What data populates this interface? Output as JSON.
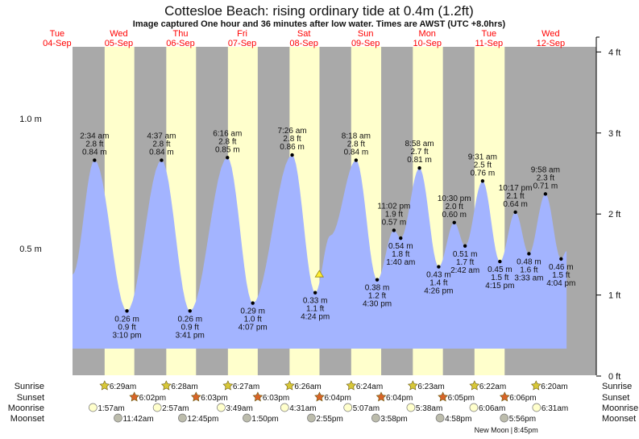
{
  "chart_data": {
    "type": "area",
    "title": "Cottesloe Beach: rising  ordinary tide at 0.4m (1.2ft)",
    "subtitle": "Image captured One hour and 36 minutes after low water. Times are AWST (UTC +8.0hrs)",
    "days": [
      {
        "dow": "Tue",
        "date": "04-Sep"
      },
      {
        "dow": "Wed",
        "date": "05-Sep"
      },
      {
        "dow": "Thu",
        "date": "06-Sep"
      },
      {
        "dow": "Fri",
        "date": "07-Sep"
      },
      {
        "dow": "Sat",
        "date": "08-Sep"
      },
      {
        "dow": "Sun",
        "date": "09-Sep"
      },
      {
        "dow": "Mon",
        "date": "10-Sep"
      },
      {
        "dow": "Tue",
        "date": "11-Sep"
      },
      {
        "dow": "Wed",
        "date": "12-Sep"
      }
    ],
    "left_axis": {
      "unit": "m",
      "ticks": [
        {
          "v": 0.5,
          "label": "0.5 m"
        },
        {
          "v": 1.0,
          "label": "1.0 m"
        }
      ]
    },
    "right_axis": {
      "unit": "ft",
      "ticks": [
        {
          "v": 0,
          "label": "0 ft"
        },
        {
          "v": 1,
          "label": "1 ft"
        },
        {
          "v": 2,
          "label": "2 ft"
        },
        {
          "v": 3,
          "label": "3 ft"
        },
        {
          "v": 4,
          "label": "4 ft"
        }
      ]
    },
    "current": {
      "day": 4,
      "time": "6:00 pm",
      "height_m": 0.4
    },
    "series_start": {
      "day": 0,
      "hour": 18.0,
      "height_m": 0.4
    },
    "series_end": {
      "day": 8,
      "hour": 18.2,
      "height_m": 0.49
    },
    "extra_points": [
      {
        "day": 4,
        "hour": 22.3,
        "height_m": 0.55
      }
    ],
    "extremes": [
      {
        "type": "high",
        "day": 1,
        "time": "2:34 am",
        "m": "0.84 m",
        "ft": "2.8 ft",
        "height_m": 0.84
      },
      {
        "type": "low",
        "day": 1,
        "time": "3:10 pm",
        "m": "0.26 m",
        "ft": "0.9 ft",
        "height_m": 0.26
      },
      {
        "type": "high",
        "day": 2,
        "time": "4:37 am",
        "m": "0.84 m",
        "ft": "2.8 ft",
        "height_m": 0.84
      },
      {
        "type": "low",
        "day": 2,
        "time": "3:41 pm",
        "m": "0.26 m",
        "ft": "0.9 ft",
        "height_m": 0.26
      },
      {
        "type": "high",
        "day": 3,
        "time": "6:16 am",
        "m": "0.85 m",
        "ft": "2.8 ft",
        "height_m": 0.85
      },
      {
        "type": "low",
        "day": 3,
        "time": "4:07 pm",
        "m": "0.29 m",
        "ft": "1.0 ft",
        "height_m": 0.29
      },
      {
        "type": "high",
        "day": 4,
        "time": "7:26 am",
        "m": "0.86 m",
        "ft": "2.8 ft",
        "height_m": 0.86
      },
      {
        "type": "low",
        "day": 4,
        "time": "4:24 pm",
        "m": "0.33 m",
        "ft": "1.1 ft",
        "height_m": 0.33
      },
      {
        "type": "high",
        "day": 5,
        "time": "8:18 am",
        "m": "0.84 m",
        "ft": "2.8 ft",
        "height_m": 0.84
      },
      {
        "type": "low",
        "day": 5,
        "time": "4:30 pm",
        "m": "0.38 m",
        "ft": "1.2 ft",
        "height_m": 0.38
      },
      {
        "type": "high",
        "day": 5,
        "time": "11:02 pm",
        "m": "0.57 m",
        "ft": "1.9 ft",
        "height_m": 0.57
      },
      {
        "type": "low",
        "day": 6,
        "time": "1:40 am",
        "m": "0.54 m",
        "ft": "1.8 ft",
        "height_m": 0.54
      },
      {
        "type": "high",
        "day": 6,
        "time": "8:58 am",
        "m": "0.81 m",
        "ft": "2.7 ft",
        "height_m": 0.81
      },
      {
        "type": "low",
        "day": 6,
        "time": "4:26 pm",
        "m": "0.43 m",
        "ft": "1.4 ft",
        "height_m": 0.43
      },
      {
        "type": "high",
        "day": 6,
        "time": "10:30 pm",
        "m": "0.60 m",
        "ft": "2.0 ft",
        "height_m": 0.6
      },
      {
        "type": "low",
        "day": 7,
        "time": "2:42 am",
        "m": "0.51 m",
        "ft": "1.7 ft",
        "height_m": 0.51
      },
      {
        "type": "high",
        "day": 7,
        "time": "9:31 am",
        "m": "0.76 m",
        "ft": "2.5 ft",
        "height_m": 0.76
      },
      {
        "type": "low",
        "day": 7,
        "time": "4:15 pm",
        "m": "0.45 m",
        "ft": "1.5 ft",
        "height_m": 0.45
      },
      {
        "type": "high",
        "day": 7,
        "time": "10:17 pm",
        "m": "0.64 m",
        "ft": "2.1 ft",
        "height_m": 0.64
      },
      {
        "type": "low",
        "day": 8,
        "time": "3:33 am",
        "m": "0.48 m",
        "ft": "1.6 ft",
        "height_m": 0.48
      },
      {
        "type": "high",
        "day": 8,
        "time": "9:58 am",
        "m": "0.71 m",
        "ft": "2.3 ft",
        "height_m": 0.71
      },
      {
        "type": "low",
        "day": 8,
        "time": "4:04 pm",
        "m": "0.46 m",
        "ft": "1.5 ft",
        "height_m": 0.46
      }
    ],
    "rows": {
      "labels": {
        "sunrise": "Sunrise",
        "sunset": "Sunset",
        "moonrise": "Moonrise",
        "moonset": "Moonset"
      },
      "sunrise": [
        {
          "day": 1,
          "time": "6:29am"
        },
        {
          "day": 2,
          "time": "6:28am"
        },
        {
          "day": 3,
          "time": "6:27am"
        },
        {
          "day": 4,
          "time": "6:26am"
        },
        {
          "day": 5,
          "time": "6:24am"
        },
        {
          "day": 6,
          "time": "6:23am"
        },
        {
          "day": 7,
          "time": "6:22am"
        },
        {
          "day": 8,
          "time": "6:20am"
        }
      ],
      "sunset": [
        {
          "day": 1,
          "time": "6:02pm"
        },
        {
          "day": 2,
          "time": "6:03pm"
        },
        {
          "day": 3,
          "time": "6:03pm"
        },
        {
          "day": 4,
          "time": "6:04pm"
        },
        {
          "day": 5,
          "time": "6:04pm"
        },
        {
          "day": 6,
          "time": "6:05pm"
        },
        {
          "day": 7,
          "time": "6:06pm"
        }
      ],
      "moonrise": [
        {
          "day": 1,
          "time": "1:57am"
        },
        {
          "day": 2,
          "time": "2:57am"
        },
        {
          "day": 3,
          "time": "3:49am"
        },
        {
          "day": 4,
          "time": "4:31am"
        },
        {
          "day": 5,
          "time": "5:07am"
        },
        {
          "day": 6,
          "time": "5:38am"
        },
        {
          "day": 7,
          "time": "6:06am"
        },
        {
          "day": 8,
          "time": "6:31am"
        }
      ],
      "moonset": [
        {
          "day": 1,
          "time": "11:42am"
        },
        {
          "day": 2,
          "time": "12:45pm"
        },
        {
          "day": 3,
          "time": "1:50pm"
        },
        {
          "day": 4,
          "time": "2:55pm"
        },
        {
          "day": 5,
          "time": "3:58pm"
        },
        {
          "day": 6,
          "time": "4:58pm"
        },
        {
          "day": 7,
          "time": "5:56pm"
        }
      ]
    },
    "moon_phase": {
      "label": "New Moon",
      "time": "8:45pm",
      "day": 7
    }
  },
  "colors": {
    "night": "#a9a9a9",
    "day": "#ffffcc",
    "water": "#a3b4ff",
    "date_text": "#ff0000",
    "sunrise": "#d8c838",
    "sunset": "#d86428",
    "moonrise": "#ffffcc",
    "moonset": "#bcbcac"
  }
}
